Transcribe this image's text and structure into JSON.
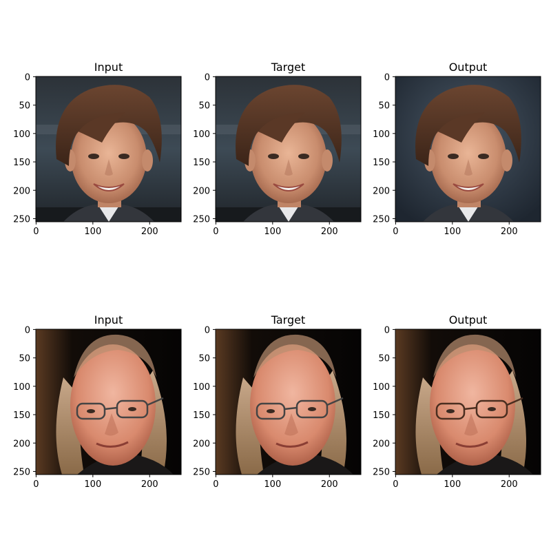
{
  "figure": {
    "rows": [
      {
        "panels": [
          {
            "title": "Input",
            "palette": "dark"
          },
          {
            "title": "Target",
            "palette": "dark"
          },
          {
            "title": "Output",
            "palette": "smooth"
          }
        ],
        "subject": "young-man-brown-hair"
      },
      {
        "panels": [
          {
            "title": "Input",
            "palette": "black"
          },
          {
            "title": "Target",
            "palette": "black"
          },
          {
            "title": "Output",
            "palette": "black-smooth"
          }
        ],
        "subject": "older-man-glasses-long-hair"
      }
    ],
    "x_ticks": [
      "0",
      "100",
      "200"
    ],
    "y_ticks": [
      "0",
      "50",
      "100",
      "150",
      "200",
      "250"
    ],
    "x_tick_values": [
      0,
      100,
      200
    ],
    "y_tick_values": [
      0,
      50,
      100,
      150,
      200,
      250
    ],
    "image_size": 256
  }
}
